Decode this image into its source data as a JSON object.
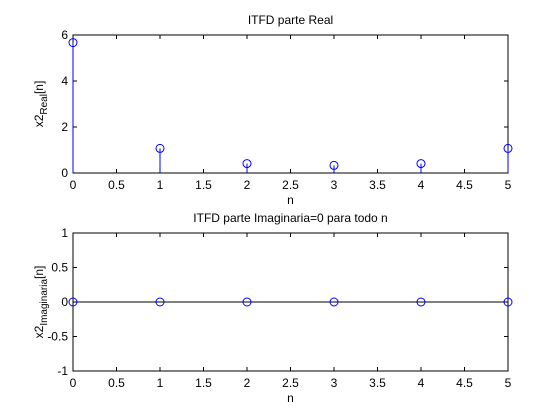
{
  "figure_background": "#ffffff",
  "chart_data": [
    {
      "type": "stem",
      "title": "ITFD parte Real",
      "xlabel": "n",
      "ylabel_base": "x2",
      "ylabel_sub": "Real",
      "ylabel_suffix": "[n]",
      "xlim": [
        0,
        5
      ],
      "ylim": [
        0,
        6
      ],
      "xticks": [
        "0",
        "0.5",
        "1",
        "1.5",
        "2",
        "2.5",
        "3",
        "3.5",
        "4",
        "4.5",
        "5"
      ],
      "yticks": [
        "0",
        "2",
        "4",
        "6"
      ],
      "grid": false,
      "marker": "circle",
      "color": "#0000ff",
      "x": [
        0,
        1,
        2,
        3,
        4,
        5
      ],
      "y": [
        5.67,
        1.07,
        0.41,
        0.33,
        0.41,
        1.07
      ]
    },
    {
      "type": "stem",
      "title": "ITFD parte Imaginaria=0 para todo n",
      "xlabel": "n",
      "ylabel_base": "x2",
      "ylabel_sub": "Imaginaria",
      "ylabel_suffix": "[n]",
      "xlim": [
        0,
        5
      ],
      "ylim": [
        -1,
        1
      ],
      "xticks": [
        "0",
        "0.5",
        "1",
        "1.5",
        "2",
        "2.5",
        "3",
        "3.5",
        "4",
        "4.5",
        "5"
      ],
      "yticks": [
        "-1",
        "-0.5",
        "0",
        "0.5",
        "1"
      ],
      "grid": false,
      "baseline": 0,
      "marker": "circle",
      "color": "#0000ff",
      "x": [
        0,
        1,
        2,
        3,
        4,
        5
      ],
      "y": [
        0,
        0,
        0,
        0,
        0,
        0
      ]
    }
  ]
}
